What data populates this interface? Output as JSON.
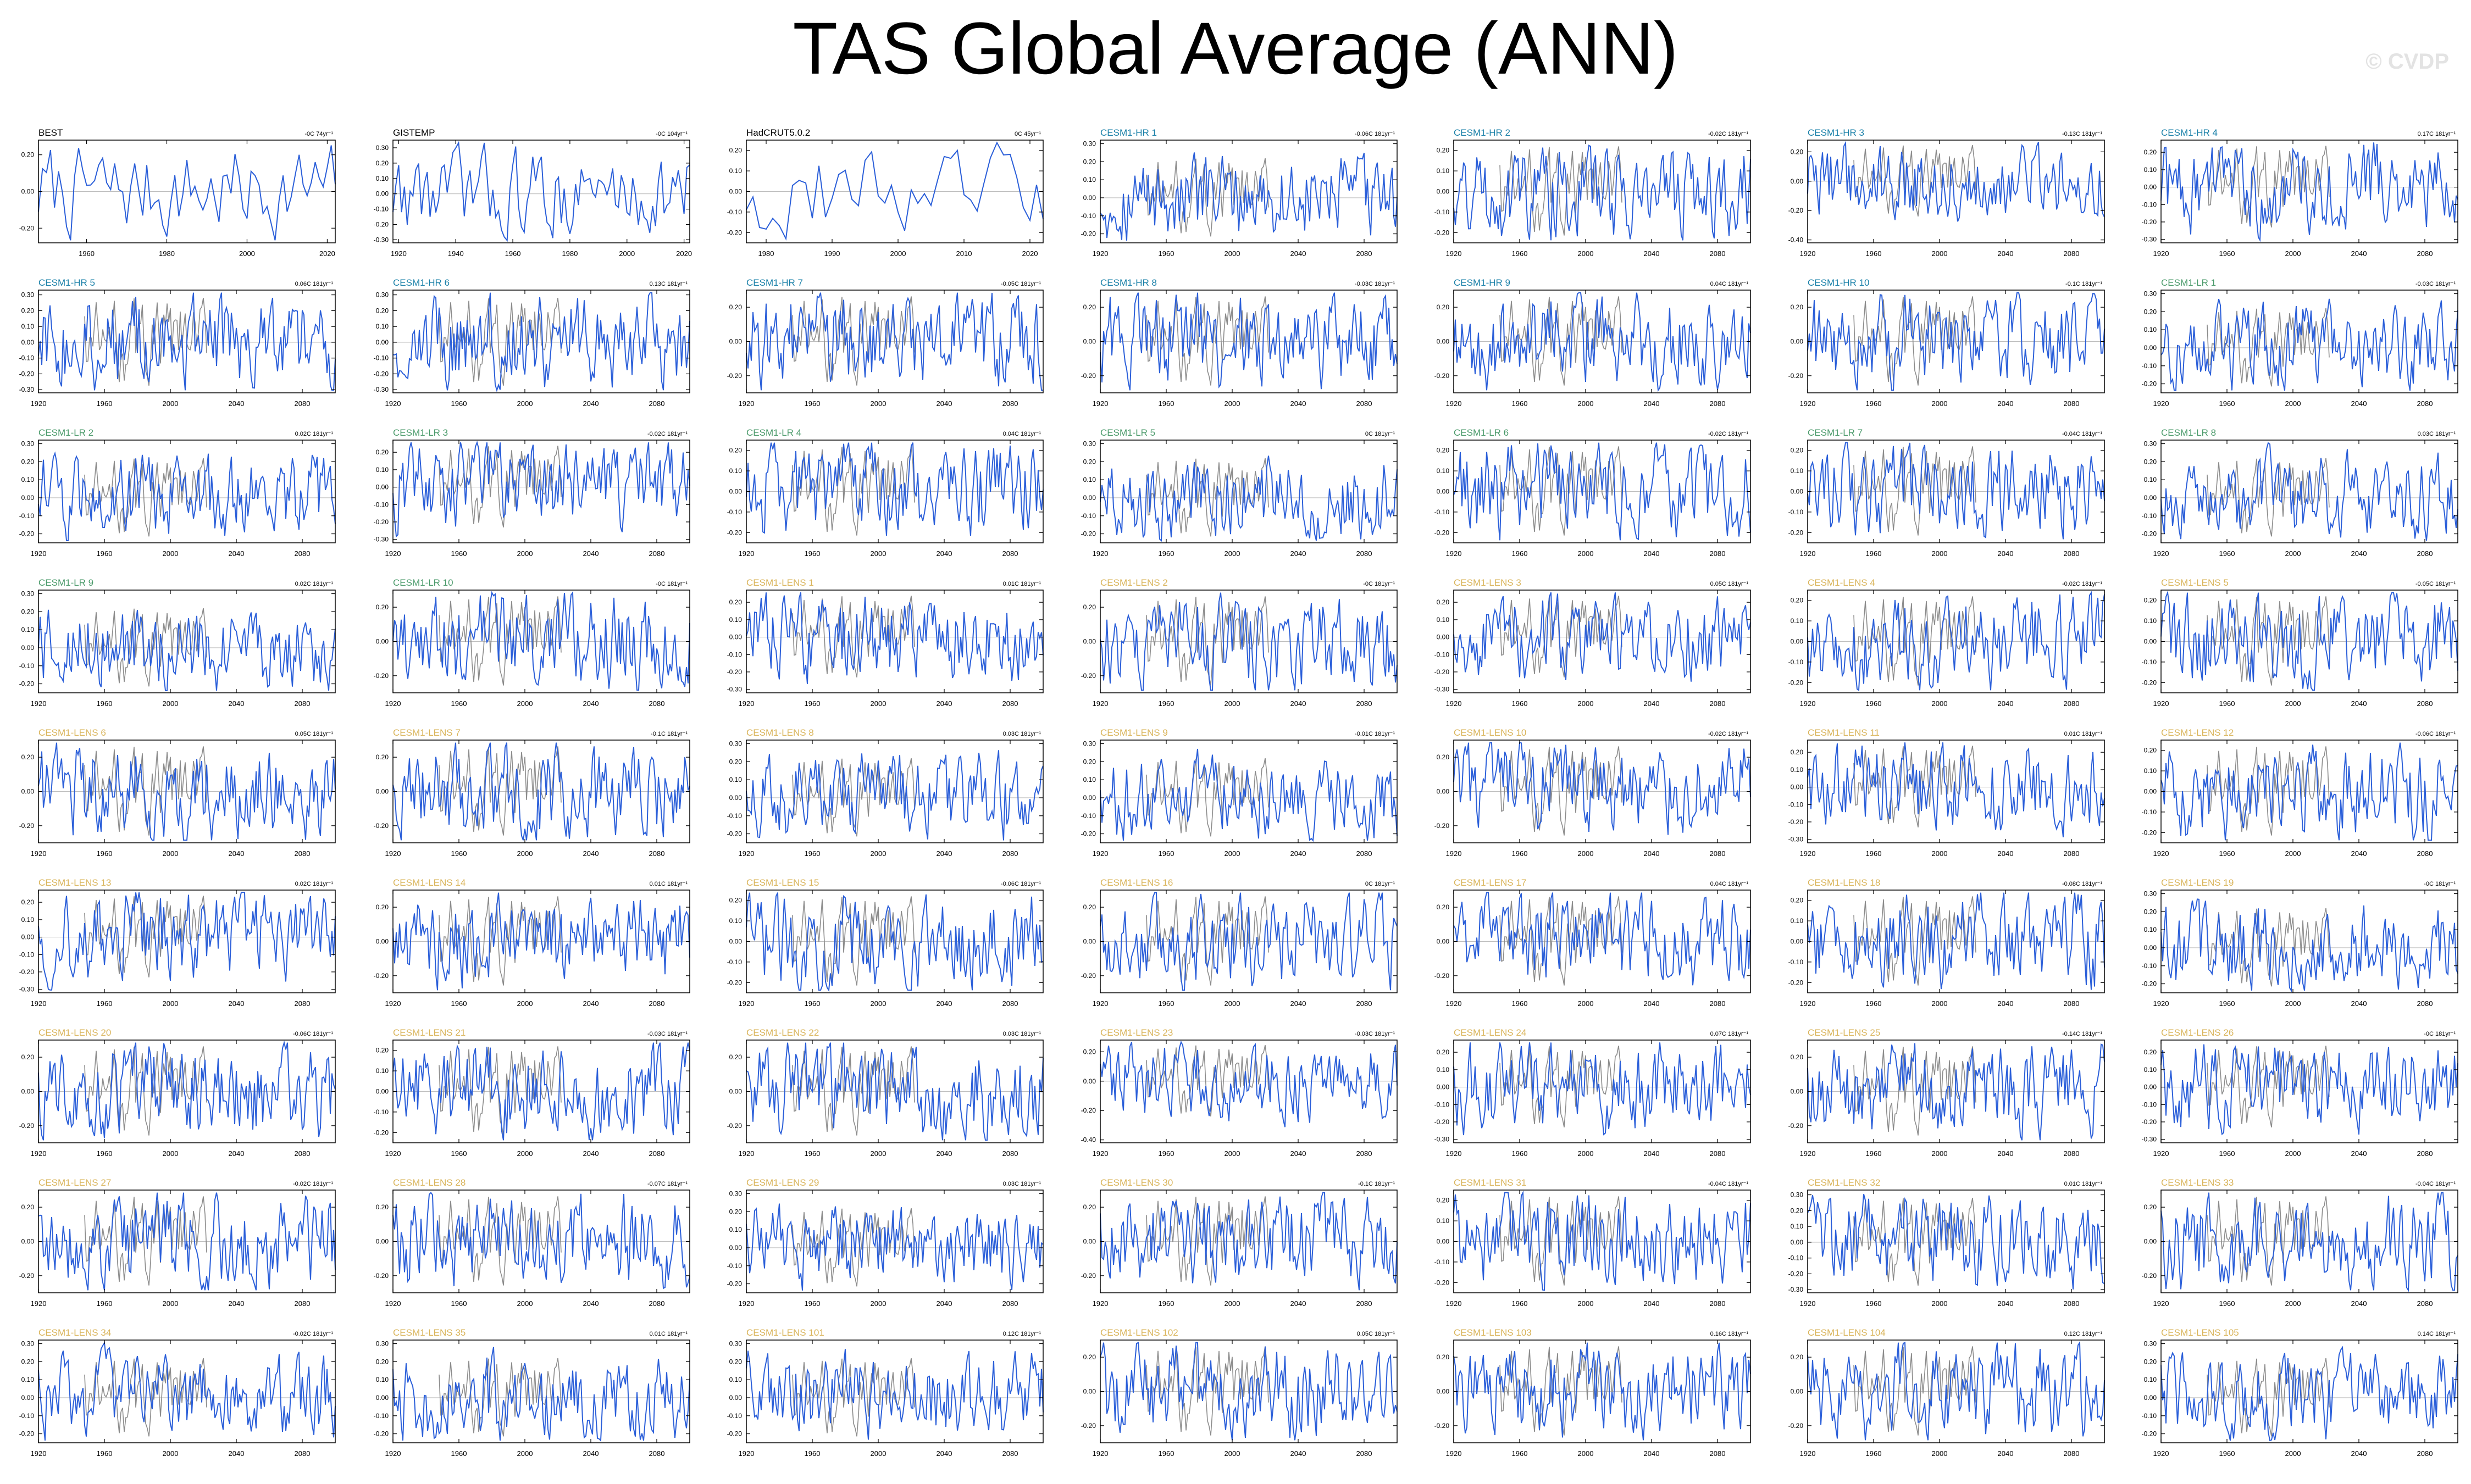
{
  "title": "TAS Global Average (ANN)",
  "watermark": "© CVDP",
  "colors": {
    "obs_line": "#000000",
    "model_line": "#2b5fd9",
    "obs_overlay": "#8c8c8c",
    "zero_line": "#bdbdbd",
    "label_obs": "#000000",
    "label_hr": "#1a80a8",
    "label_lr": "#4a9a6a",
    "label_lens": "#d9b45a"
  },
  "chart_data": [
    {
      "label": "BEST",
      "trend": "-0C 74yr⁻¹",
      "group": "obs",
      "x_range": [
        1948,
        2022
      ],
      "x_ticks": [
        "1960",
        "1980",
        "2000",
        "2020"
      ],
      "y_ticks": [
        "0.20",
        "0.00",
        "-0.20"
      ],
      "y_range": [
        -0.28,
        0.28
      ]
    },
    {
      "label": "GISTEMP",
      "trend": "-0C 104yr⁻¹",
      "group": "obs",
      "x_range": [
        1918,
        2022
      ],
      "x_ticks": [
        "1920",
        "1940",
        "1960",
        "1980",
        "2000",
        "2020"
      ],
      "y_ticks": [
        "0.30",
        "0.20",
        "0.10",
        "0.00",
        "-0.10",
        "-0.20",
        "-0.30"
      ],
      "y_range": [
        -0.32,
        0.35
      ]
    },
    {
      "label": "HadCRUT5.0.2",
      "trend": "0C 45yr⁻¹",
      "group": "obs",
      "x_range": [
        1977,
        2022
      ],
      "x_ticks": [
        "1980",
        "1990",
        "2000",
        "2010",
        "2020"
      ],
      "y_ticks": [
        "0.20",
        "0.10",
        "0.00",
        "-0.10",
        "-0.20"
      ],
      "y_range": [
        -0.25,
        0.25
      ]
    },
    {
      "label": "CESM1-HR 1",
      "trend": "-0.06C 181yr⁻¹",
      "group": "hr",
      "y_ticks": [
        "0.30",
        "0.20",
        "0.10",
        "0.00",
        "-0.10",
        "-0.20"
      ],
      "y_range": [
        -0.25,
        0.32
      ]
    },
    {
      "label": "CESM1-HR 2",
      "trend": "-0.02C 181yr⁻¹",
      "group": "hr",
      "y_ticks": [
        "0.20",
        "0.10",
        "0.00",
        "-0.10",
        "-0.20"
      ],
      "y_range": [
        -0.25,
        0.25
      ]
    },
    {
      "label": "CESM1-HR 3",
      "trend": "-0.13C 181yr⁻¹",
      "group": "hr",
      "y_ticks": [
        "0.20",
        "0.00",
        "-0.20",
        "-0.40"
      ],
      "y_range": [
        -0.42,
        0.28
      ]
    },
    {
      "label": "CESM1-HR 4",
      "trend": "0.17C 181yr⁻¹",
      "group": "hr",
      "y_ticks": [
        "0.20",
        "0.10",
        "0.00",
        "-0.10",
        "-0.20",
        "-0.30"
      ],
      "y_range": [
        -0.32,
        0.27
      ]
    },
    {
      "label": "CESM1-HR 5",
      "trend": "0.06C 181yr⁻¹",
      "group": "hr",
      "y_ticks": [
        "0.30",
        "0.20",
        "0.10",
        "0.00",
        "-0.10",
        "-0.20",
        "-0.30"
      ],
      "y_range": [
        -0.32,
        0.33
      ]
    },
    {
      "label": "CESM1-HR 6",
      "trend": "0.13C 181yr⁻¹",
      "group": "hr",
      "y_ticks": [
        "0.30",
        "0.20",
        "0.10",
        "0.00",
        "-0.10",
        "-0.20",
        "-0.30"
      ],
      "y_range": [
        -0.32,
        0.33
      ]
    },
    {
      "label": "CESM1-HR 7",
      "trend": "-0.05C 181yr⁻¹",
      "group": "hr",
      "y_ticks": [
        "0.20",
        "0.00",
        "-0.20"
      ],
      "y_range": [
        -0.3,
        0.3
      ]
    },
    {
      "label": "CESM1-HR 8",
      "trend": "-0.03C 181yr⁻¹",
      "group": "hr",
      "y_ticks": [
        "0.20",
        "0.00",
        "-0.20"
      ],
      "y_range": [
        -0.3,
        0.3
      ]
    },
    {
      "label": "CESM1-HR 9",
      "trend": "0.04C 181yr⁻¹",
      "group": "hr",
      "y_ticks": [
        "0.20",
        "0.00",
        "-0.20"
      ],
      "y_range": [
        -0.3,
        0.3
      ]
    },
    {
      "label": "CESM1-HR 10",
      "trend": "-0.1C 181yr⁻¹",
      "group": "hr",
      "y_ticks": [
        "0.20",
        "0.00",
        "-0.20"
      ],
      "y_range": [
        -0.3,
        0.3
      ]
    },
    {
      "label": "CESM1-LR 1",
      "trend": "-0.03C 181yr⁻¹",
      "group": "lr",
      "y_ticks": [
        "0.30",
        "0.20",
        "0.10",
        "0.00",
        "-0.10",
        "-0.20"
      ],
      "y_range": [
        -0.25,
        0.32
      ]
    },
    {
      "label": "CESM1-LR 2",
      "trend": "0.02C 181yr⁻¹",
      "group": "lr",
      "y_ticks": [
        "0.30",
        "0.20",
        "0.10",
        "0.00",
        "-0.10",
        "-0.20"
      ],
      "y_range": [
        -0.25,
        0.32
      ]
    },
    {
      "label": "CESM1-LR 3",
      "trend": "-0.02C 181yr⁻¹",
      "group": "lr",
      "y_ticks": [
        "0.20",
        "0.10",
        "0.00",
        "-0.10",
        "-0.20",
        "-0.30"
      ],
      "y_range": [
        -0.32,
        0.27
      ]
    },
    {
      "label": "CESM1-LR 4",
      "trend": "0.04C 181yr⁻¹",
      "group": "lr",
      "y_ticks": [
        "0.20",
        "0.10",
        "0.00",
        "-0.10",
        "-0.20"
      ],
      "y_range": [
        -0.25,
        0.25
      ]
    },
    {
      "label": "CESM1-LR 5",
      "trend": "0C 181yr⁻¹",
      "group": "lr",
      "y_ticks": [
        "0.30",
        "0.20",
        "0.10",
        "0.00",
        "-0.10",
        "-0.20"
      ],
      "y_range": [
        -0.25,
        0.32
      ]
    },
    {
      "label": "CESM1-LR 6",
      "trend": "-0.02C 181yr⁻¹",
      "group": "lr",
      "y_ticks": [
        "0.20",
        "0.10",
        "0.00",
        "-0.10",
        "-0.20"
      ],
      "y_range": [
        -0.25,
        0.25
      ]
    },
    {
      "label": "CESM1-LR 7",
      "trend": "-0.04C 181yr⁻¹",
      "group": "lr",
      "y_ticks": [
        "0.20",
        "0.10",
        "0.00",
        "-0.10",
        "-0.20"
      ],
      "y_range": [
        -0.25,
        0.25
      ]
    },
    {
      "label": "CESM1-LR 8",
      "trend": "0.03C 181yr⁻¹",
      "group": "lr",
      "y_ticks": [
        "0.30",
        "0.20",
        "0.10",
        "0.00",
        "-0.10",
        "-0.20"
      ],
      "y_range": [
        -0.25,
        0.32
      ]
    },
    {
      "label": "CESM1-LR 9",
      "trend": "0.02C 181yr⁻¹",
      "group": "lr",
      "y_ticks": [
        "0.30",
        "0.20",
        "0.10",
        "0.00",
        "-0.10",
        "-0.20"
      ],
      "y_range": [
        -0.25,
        0.32
      ]
    },
    {
      "label": "CESM1-LR 10",
      "trend": "-0C 181yr⁻¹",
      "group": "lr",
      "y_ticks": [
        "0.20",
        "0.00",
        "-0.20"
      ],
      "y_range": [
        -0.3,
        0.3
      ]
    },
    {
      "label": "CESM1-LENS 1",
      "trend": "0.01C 181yr⁻¹",
      "group": "lens",
      "y_ticks": [
        "0.20",
        "0.10",
        "0.00",
        "-0.10",
        "-0.20",
        "-0.30"
      ],
      "y_range": [
        -0.32,
        0.27
      ]
    },
    {
      "label": "CESM1-LENS 2",
      "trend": "-0C 181yr⁻¹",
      "group": "lens",
      "y_ticks": [
        "0.20",
        "0.00",
        "-0.20"
      ],
      "y_range": [
        -0.3,
        0.3
      ]
    },
    {
      "label": "CESM1-LENS 3",
      "trend": "0.05C 181yr⁻¹",
      "group": "lens",
      "y_ticks": [
        "0.20",
        "0.10",
        "0.00",
        "-0.10",
        "-0.20",
        "-0.30"
      ],
      "y_range": [
        -0.32,
        0.27
      ]
    },
    {
      "label": "CESM1-LENS 4",
      "trend": "-0.02C 181yr⁻¹",
      "group": "lens",
      "y_ticks": [
        "0.20",
        "0.10",
        "0.00",
        "-0.10",
        "-0.20"
      ],
      "y_range": [
        -0.25,
        0.25
      ]
    },
    {
      "label": "CESM1-LENS 5",
      "trend": "-0.05C 181yr⁻¹",
      "group": "lens",
      "y_ticks": [
        "0.20",
        "0.10",
        "0.00",
        "-0.10",
        "-0.20"
      ],
      "y_range": [
        -0.25,
        0.25
      ]
    },
    {
      "label": "CESM1-LENS 6",
      "trend": "0.05C 181yr⁻¹",
      "group": "lens",
      "y_ticks": [
        "0.20",
        "0.00",
        "-0.20"
      ],
      "y_range": [
        -0.3,
        0.3
      ]
    },
    {
      "label": "CESM1-LENS 7",
      "trend": "-0.1C 181yr⁻¹",
      "group": "lens",
      "y_ticks": [
        "0.20",
        "0.00",
        "-0.20"
      ],
      "y_range": [
        -0.3,
        0.3
      ]
    },
    {
      "label": "CESM1-LENS 8",
      "trend": "0.03C 181yr⁻¹",
      "group": "lens",
      "y_ticks": [
        "0.30",
        "0.20",
        "0.10",
        "0.00",
        "-0.10",
        "-0.20"
      ],
      "y_range": [
        -0.25,
        0.32
      ]
    },
    {
      "label": "CESM1-LENS 9",
      "trend": "-0.01C 181yr⁻¹",
      "group": "lens",
      "y_ticks": [
        "0.30",
        "0.20",
        "0.10",
        "0.00",
        "-0.10",
        "-0.20"
      ],
      "y_range": [
        -0.25,
        0.32
      ]
    },
    {
      "label": "CESM1-LENS 10",
      "trend": "-0.02C 181yr⁻¹",
      "group": "lens",
      "y_ticks": [
        "0.20",
        "0.00",
        "-0.20"
      ],
      "y_range": [
        -0.3,
        0.3
      ]
    },
    {
      "label": "CESM1-LENS 11",
      "trend": "0.01C 181yr⁻¹",
      "group": "lens",
      "y_ticks": [
        "0.20",
        "0.10",
        "0.00",
        "-0.10",
        "-0.20",
        "-0.30"
      ],
      "y_range": [
        -0.32,
        0.27
      ]
    },
    {
      "label": "CESM1-LENS 12",
      "trend": "-0.06C 181yr⁻¹",
      "group": "lens",
      "y_ticks": [
        "0.20",
        "0.10",
        "0.00",
        "-0.10",
        "-0.20"
      ],
      "y_range": [
        -0.25,
        0.25
      ]
    },
    {
      "label": "CESM1-LENS 13",
      "trend": "0.02C 181yr⁻¹",
      "group": "lens",
      "y_ticks": [
        "0.20",
        "0.10",
        "0.00",
        "-0.10",
        "-0.20",
        "-0.30"
      ],
      "y_range": [
        -0.32,
        0.27
      ]
    },
    {
      "label": "CESM1-LENS 14",
      "trend": "0.01C 181yr⁻¹",
      "group": "lens",
      "y_ticks": [
        "0.20",
        "0.00",
        "-0.20"
      ],
      "y_range": [
        -0.3,
        0.3
      ]
    },
    {
      "label": "CESM1-LENS 15",
      "trend": "-0.06C 181yr⁻¹",
      "group": "lens",
      "y_ticks": [
        "0.20",
        "0.10",
        "0.00",
        "-0.10",
        "-0.20"
      ],
      "y_range": [
        -0.25,
        0.25
      ]
    },
    {
      "label": "CESM1-LENS 16",
      "trend": "0C 181yr⁻¹",
      "group": "lens",
      "y_ticks": [
        "0.20",
        "0.00",
        "-0.20"
      ],
      "y_range": [
        -0.3,
        0.3
      ]
    },
    {
      "label": "CESM1-LENS 17",
      "trend": "0.04C 181yr⁻¹",
      "group": "lens",
      "y_ticks": [
        "0.20",
        "0.00",
        "-0.20"
      ],
      "y_range": [
        -0.3,
        0.3
      ]
    },
    {
      "label": "CESM1-LENS 18",
      "trend": "-0.08C 181yr⁻¹",
      "group": "lens",
      "y_ticks": [
        "0.20",
        "0.10",
        "0.00",
        "-0.10",
        "-0.20"
      ],
      "y_range": [
        -0.25,
        0.25
      ]
    },
    {
      "label": "CESM1-LENS 19",
      "trend": "-0C 181yr⁻¹",
      "group": "lens",
      "y_ticks": [
        "0.30",
        "0.20",
        "0.10",
        "0.00",
        "-0.10",
        "-0.20"
      ],
      "y_range": [
        -0.25,
        0.32
      ]
    },
    {
      "label": "CESM1-LENS 20",
      "trend": "-0.06C 181yr⁻¹",
      "group": "lens",
      "y_ticks": [
        "0.20",
        "0.00",
        "-0.20"
      ],
      "y_range": [
        -0.3,
        0.3
      ]
    },
    {
      "label": "CESM1-LENS 21",
      "trend": "-0.03C 181yr⁻¹",
      "group": "lens",
      "y_ticks": [
        "0.20",
        "0.10",
        "0.00",
        "-0.10",
        "-0.20"
      ],
      "y_range": [
        -0.25,
        0.25
      ]
    },
    {
      "label": "CESM1-LENS 22",
      "trend": "0.03C 181yr⁻¹",
      "group": "lens",
      "y_ticks": [
        "0.20",
        "0.00",
        "-0.20"
      ],
      "y_range": [
        -0.3,
        0.3
      ]
    },
    {
      "label": "CESM1-LENS 23",
      "trend": "-0.03C 181yr⁻¹",
      "group": "lens",
      "y_ticks": [
        "0.20",
        "0.00",
        "-0.20",
        "-0.40"
      ],
      "y_range": [
        -0.42,
        0.28
      ]
    },
    {
      "label": "CESM1-LENS 24",
      "trend": "0.07C 181yr⁻¹",
      "group": "lens",
      "y_ticks": [
        "0.20",
        "0.10",
        "0.00",
        "-0.10",
        "-0.20",
        "-0.30"
      ],
      "y_range": [
        -0.32,
        0.27
      ]
    },
    {
      "label": "CESM1-LENS 25",
      "trend": "-0.14C 181yr⁻¹",
      "group": "lens",
      "y_ticks": [
        "0.20",
        "0.00",
        "-0.20"
      ],
      "y_range": [
        -0.3,
        0.3
      ]
    },
    {
      "label": "CESM1-LENS 26",
      "trend": "-0C 181yr⁻¹",
      "group": "lens",
      "y_ticks": [
        "0.20",
        "0.10",
        "0.00",
        "-0.10",
        "-0.20",
        "-0.30"
      ],
      "y_range": [
        -0.32,
        0.27
      ]
    },
    {
      "label": "CESM1-LENS 27",
      "trend": "-0.02C 181yr⁻¹",
      "group": "lens",
      "y_ticks": [
        "0.20",
        "0.00",
        "-0.20"
      ],
      "y_range": [
        -0.3,
        0.3
      ]
    },
    {
      "label": "CESM1-LENS 28",
      "trend": "-0.07C 181yr⁻¹",
      "group": "lens",
      "y_ticks": [
        "0.20",
        "0.00",
        "-0.20"
      ],
      "y_range": [
        -0.3,
        0.3
      ]
    },
    {
      "label": "CESM1-LENS 29",
      "trend": "0.03C 181yr⁻¹",
      "group": "lens",
      "y_ticks": [
        "0.30",
        "0.20",
        "0.10",
        "0.00",
        "-0.10",
        "-0.20"
      ],
      "y_range": [
        -0.25,
        0.32
      ]
    },
    {
      "label": "CESM1-LENS 30",
      "trend": "-0.1C 181yr⁻¹",
      "group": "lens",
      "y_ticks": [
        "0.20",
        "0.00",
        "-0.20"
      ],
      "y_range": [
        -0.3,
        0.3
      ]
    },
    {
      "label": "CESM1-LENS 31",
      "trend": "-0.04C 181yr⁻¹",
      "group": "lens",
      "y_ticks": [
        "0.20",
        "0.10",
        "0.00",
        "-0.10",
        "-0.20"
      ],
      "y_range": [
        -0.25,
        0.25
      ]
    },
    {
      "label": "CESM1-LENS 32",
      "trend": "0.01C 181yr⁻¹",
      "group": "lens",
      "y_ticks": [
        "0.30",
        "0.20",
        "0.10",
        "0.00",
        "-0.10",
        "-0.20",
        "-0.30"
      ],
      "y_range": [
        -0.32,
        0.33
      ]
    },
    {
      "label": "CESM1-LENS 33",
      "trend": "-0.04C 181yr⁻¹",
      "group": "lens",
      "y_ticks": [
        "0.20",
        "0.00",
        "-0.20"
      ],
      "y_range": [
        -0.3,
        0.3
      ]
    },
    {
      "label": "CESM1-LENS 34",
      "trend": "-0.02C 181yr⁻¹",
      "group": "lens",
      "y_ticks": [
        "0.30",
        "0.20",
        "0.10",
        "0.00",
        "-0.10",
        "-0.20"
      ],
      "y_range": [
        -0.25,
        0.32
      ]
    },
    {
      "label": "CESM1-LENS 35",
      "trend": "0.01C 181yr⁻¹",
      "group": "lens",
      "y_ticks": [
        "0.30",
        "0.20",
        "0.10",
        "0.00",
        "-0.10",
        "-0.20"
      ],
      "y_range": [
        -0.25,
        0.32
      ]
    },
    {
      "label": "CESM1-LENS 101",
      "trend": "0.12C 181yr⁻¹",
      "group": "lens",
      "y_ticks": [
        "0.30",
        "0.20",
        "0.10",
        "0.00",
        "-0.10",
        "-0.20"
      ],
      "y_range": [
        -0.25,
        0.32
      ]
    },
    {
      "label": "CESM1-LENS 102",
      "trend": "0.05C 181yr⁻¹",
      "group": "lens",
      "y_ticks": [
        "0.20",
        "0.00",
        "-0.20"
      ],
      "y_range": [
        -0.3,
        0.3
      ]
    },
    {
      "label": "CESM1-LENS 103",
      "trend": "0.16C 181yr⁻¹",
      "group": "lens",
      "y_ticks": [
        "0.20",
        "0.00",
        "-0.20"
      ],
      "y_range": [
        -0.3,
        0.3
      ]
    },
    {
      "label": "CESM1-LENS 104",
      "trend": "0.12C 181yr⁻¹",
      "group": "lens",
      "y_ticks": [
        "0.20",
        "0.00",
        "-0.20"
      ],
      "y_range": [
        -0.3,
        0.3
      ]
    },
    {
      "label": "CESM1-LENS 105",
      "trend": "0.14C 181yr⁻¹",
      "group": "lens",
      "y_ticks": [
        "0.30",
        "0.20",
        "0.10",
        "0.00",
        "-0.10",
        "-0.20"
      ],
      "y_range": [
        -0.25,
        0.32
      ]
    }
  ],
  "model_x_range": [
    1920,
    2100
  ],
  "model_x_ticks": [
    "1920",
    "1960",
    "2000",
    "2040",
    "2080"
  ]
}
